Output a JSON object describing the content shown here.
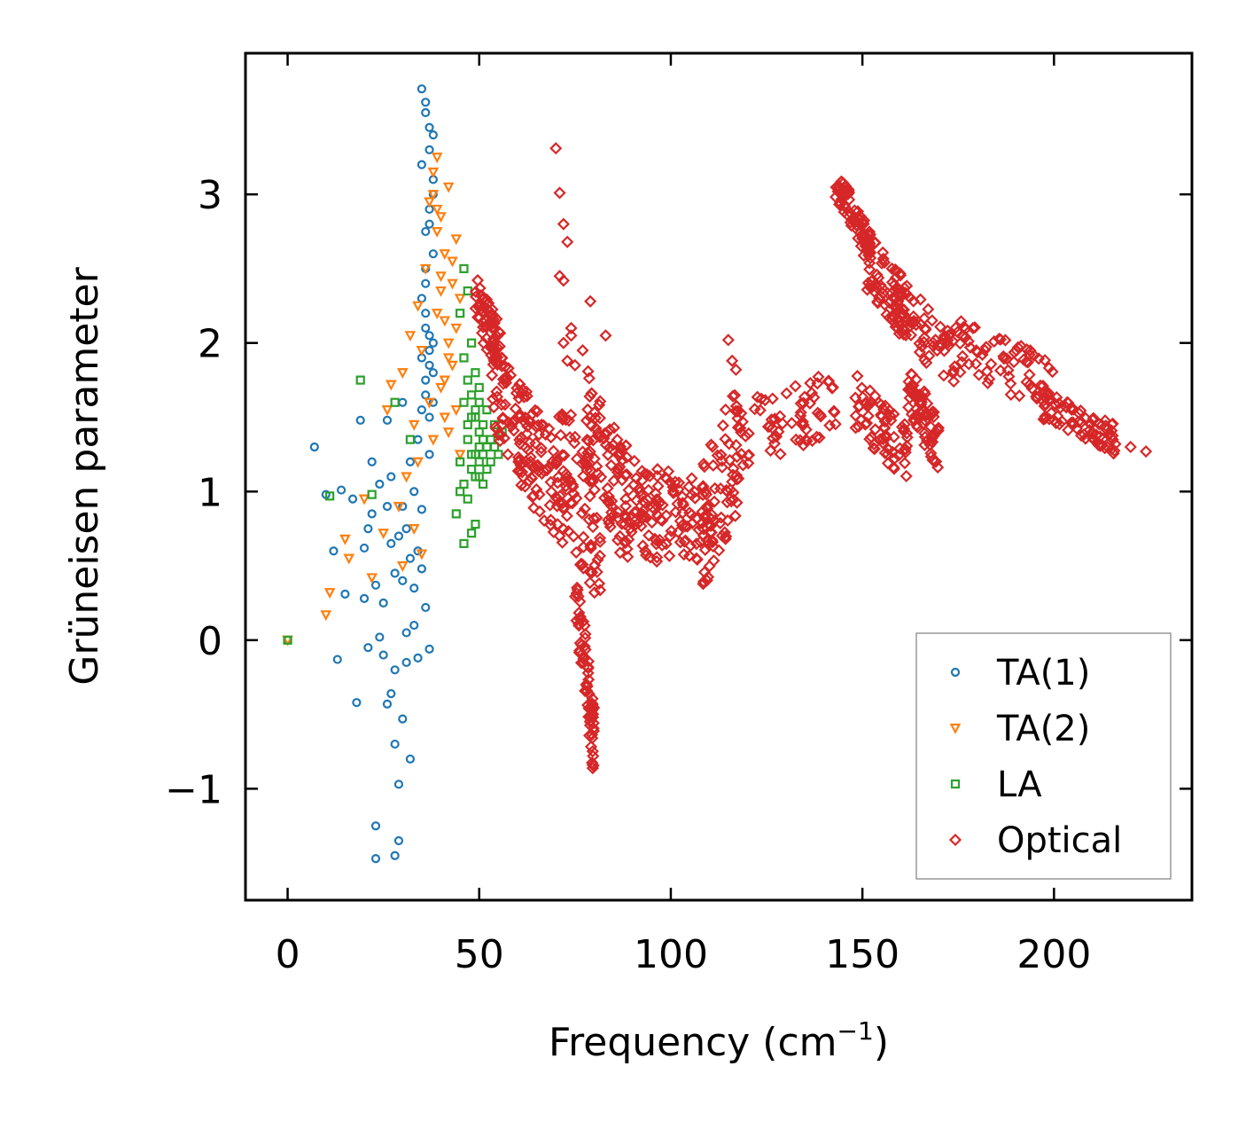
{
  "chart_data": {
    "type": "scatter",
    "xlabel": "Frequency (cm",
    "xlabel_sup": "−1",
    "xlabel_end": ")",
    "ylabel": "Grüneisen parameter",
    "xlim": [
      -11,
      236
    ],
    "ylim": [
      -1.75,
      3.95
    ],
    "xticks": [
      0,
      50,
      100,
      150,
      200
    ],
    "xtick_labels": [
      "0",
      "50",
      "100",
      "150",
      "200"
    ],
    "yticks": [
      -1,
      0,
      1,
      2,
      3
    ],
    "ytick_labels": [
      "−1",
      "0",
      "1",
      "2",
      "3"
    ],
    "legend_position": "bottom-right",
    "series": [
      {
        "name": "TA(1)",
        "marker": "circle",
        "color": "#1f77b4",
        "x": [
          0,
          7,
          10,
          12,
          13,
          14,
          15,
          17,
          18,
          19,
          20,
          20,
          21,
          21,
          22,
          22,
          23,
          23,
          23,
          24,
          24,
          25,
          25,
          26,
          26,
          26,
          27,
          27,
          27,
          28,
          28,
          28,
          28,
          29,
          29,
          29,
          30,
          30,
          30,
          30,
          31,
          31,
          31,
          32,
          32,
          32,
          33,
          33,
          33,
          34,
          34,
          34,
          35,
          35,
          35,
          35,
          36,
          36,
          36,
          36,
          37,
          37,
          37,
          37,
          38,
          38,
          38,
          38,
          35,
          36,
          37,
          38,
          35,
          36,
          37,
          36,
          37,
          38,
          36,
          37,
          35,
          36,
          37,
          38,
          36,
          37
        ],
        "y": [
          0,
          1.3,
          0.98,
          0.6,
          -0.13,
          1.01,
          0.31,
          0.95,
          -0.42,
          1.48,
          0.28,
          0.62,
          -0.05,
          0.75,
          1.2,
          0.85,
          -1.25,
          -1.47,
          0.37,
          1.05,
          0.02,
          0.25,
          -0.1,
          -0.43,
          0.9,
          1.48,
          -0.36,
          0.65,
          1.1,
          -0.7,
          0.45,
          -0.2,
          -1.45,
          0.7,
          -0.97,
          -1.35,
          0.9,
          0.4,
          -0.53,
          1.6,
          0.05,
          0.75,
          -0.15,
          1.2,
          0.55,
          -0.8,
          0.35,
          1.0,
          0.1,
          1.35,
          0.6,
          -0.12,
          1.55,
          0.88,
          0.48,
          1.9,
          2.1,
          1.75,
          0.22,
          2.4,
          2.8,
          1.85,
          1.25,
          -0.06,
          3.4,
          2.6,
          1.6,
          2.0,
          3.71,
          3.55,
          3.3,
          3.0,
          3.2,
          3.62,
          3.45,
          2.2,
          2.05,
          1.8,
          1.65,
          1.5,
          2.3,
          2.5,
          1.95,
          3.1,
          2.75,
          2.9
        ]
      },
      {
        "name": "TA(2)",
        "marker": "triangle_down",
        "color": "#ff7f0e",
        "x": [
          0,
          10,
          11,
          15,
          16,
          20,
          22,
          25,
          26,
          27,
          29,
          30,
          30,
          31,
          32,
          33,
          33,
          34,
          34,
          35,
          35,
          36,
          37,
          37,
          38,
          38,
          39,
          39,
          40,
          40,
          41,
          41,
          42,
          42,
          43,
          43,
          44,
          44,
          45,
          45,
          39,
          40,
          41,
          42,
          43,
          44,
          38,
          39,
          40,
          41,
          42
        ],
        "y": [
          0,
          0.17,
          0.32,
          0.68,
          0.55,
          0.95,
          0.42,
          0.72,
          1.55,
          1.72,
          0.9,
          1.8,
          0.5,
          1.1,
          2.05,
          1.45,
          0.75,
          2.25,
          1.2,
          1.95,
          0.58,
          2.5,
          2.95,
          1.6,
          3.15,
          1.35,
          3.25,
          2.2,
          2.85,
          1.7,
          2.6,
          1.5,
          3.05,
          2.0,
          2.4,
          1.85,
          2.7,
          1.55,
          2.3,
          1.25,
          2.75,
          2.45,
          2.15,
          1.9,
          2.55,
          2.1,
          3.0,
          2.9,
          2.35,
          1.75,
          1.4
        ]
      },
      {
        "name": "LA",
        "marker": "square",
        "color": "#2ca02c",
        "x": [
          0,
          11,
          19,
          22,
          28,
          32,
          44,
          45,
          45,
          46,
          46,
          46,
          47,
          47,
          47,
          48,
          48,
          48,
          48,
          49,
          49,
          49,
          49,
          50,
          50,
          50,
          50,
          51,
          51,
          51,
          52,
          52,
          52,
          53,
          53,
          54,
          54,
          55,
          56,
          46,
          47,
          48,
          49,
          50,
          45,
          46,
          47,
          48,
          49,
          50,
          51
        ],
        "y": [
          0,
          0.97,
          1.75,
          0.98,
          1.6,
          1.35,
          0.85,
          2.2,
          1.2,
          0.65,
          2.5,
          1.05,
          0.95,
          1.45,
          2.35,
          0.72,
          1.25,
          1.65,
          2.0,
          1.1,
          1.5,
          1.8,
          0.78,
          1.2,
          1.4,
          1.6,
          1.7,
          1.25,
          1.45,
          1.05,
          1.3,
          1.55,
          1.15,
          1.35,
          1.2,
          1.3,
          1.45,
          1.25,
          1.4,
          1.9,
          1.35,
          1.15,
          1.55,
          1.3,
          1.0,
          1.6,
          1.75,
          1.5,
          1.25,
          1.1,
          1.35
        ]
      },
      {
        "name": "Optical",
        "marker": "diamond",
        "color": "#d62728",
        "segments": [
          {
            "x": [
              49,
              56
            ],
            "y_center": [
              2.3,
              1.9
            ],
            "spread": 0.18
          },
          {
            "x": [
              53,
              66
            ],
            "y_center": [
              1.7,
              1.25
            ],
            "spread": 0.3
          },
          {
            "x": [
              60,
              73
            ],
            "y_center": [
              1.4,
              0.9
            ],
            "spread": 0.35
          },
          {
            "x": [
              70,
              82
            ],
            "y_center": [
              1.3,
              0.65
            ],
            "spread": 0.45
          },
          {
            "x": [
              75,
              80
            ],
            "y_center": [
              0.4,
              -0.7
            ],
            "spread": 0.25
          },
          {
            "x": [
              78,
              90
            ],
            "y_center": [
              1.5,
              0.8
            ],
            "spread": 0.4
          },
          {
            "x": [
              86,
              97
            ],
            "y_center": [
              1.1,
              0.75
            ],
            "spread": 0.3
          },
          {
            "x": [
              96,
              112
            ],
            "y_center": [
              0.9,
              0.75
            ],
            "spread": 0.3
          },
          {
            "x": [
              108,
              118
            ],
            "y_center": [
              0.75,
              1.35
            ],
            "spread": 0.45
          },
          {
            "x": [
              115,
              143
            ],
            "y_center": [
              1.35,
              1.6
            ],
            "spread": 0.22
          },
          {
            "x": [
              143,
              152
            ],
            "y_center": [
              3.1,
              2.65
            ],
            "spread": 0.12
          },
          {
            "x": [
              150,
              162
            ],
            "y_center": [
              2.6,
              2.2
            ],
            "spread": 0.2
          },
          {
            "x": [
              148,
              162
            ],
            "y_center": [
              1.6,
              1.25
            ],
            "spread": 0.2
          },
          {
            "x": [
              158,
              174
            ],
            "y_center": [
              2.25,
              1.9
            ],
            "spread": 0.2
          },
          {
            "x": [
              162,
              170
            ],
            "y_center": [
              1.7,
              1.3
            ],
            "spread": 0.18
          },
          {
            "x": [
              174,
              200
            ],
            "y_center": [
              2.0,
              1.7
            ],
            "spread": 0.18
          },
          {
            "x": [
              196,
              216
            ],
            "y_center": [
              1.6,
              1.35
            ],
            "spread": 0.1
          }
        ],
        "extra_points": {
          "x": [
            70,
            71,
            72,
            73,
            71,
            72,
            74,
            74,
            72,
            73,
            79,
            83,
            77,
            75,
            115,
            116,
            117,
            224,
            220,
            216,
            212,
            210,
            205,
            200
          ],
          "y": [
            3.31,
            3.01,
            2.8,
            2.68,
            2.45,
            2.42,
            2.1,
            2.05,
            2.0,
            1.88,
            2.28,
            2.05,
            1.95,
            1.85,
            2.02,
            1.88,
            1.82,
            1.27,
            1.3,
            1.32,
            1.37,
            1.4,
            1.45,
            1.48
          ]
        }
      }
    ]
  }
}
